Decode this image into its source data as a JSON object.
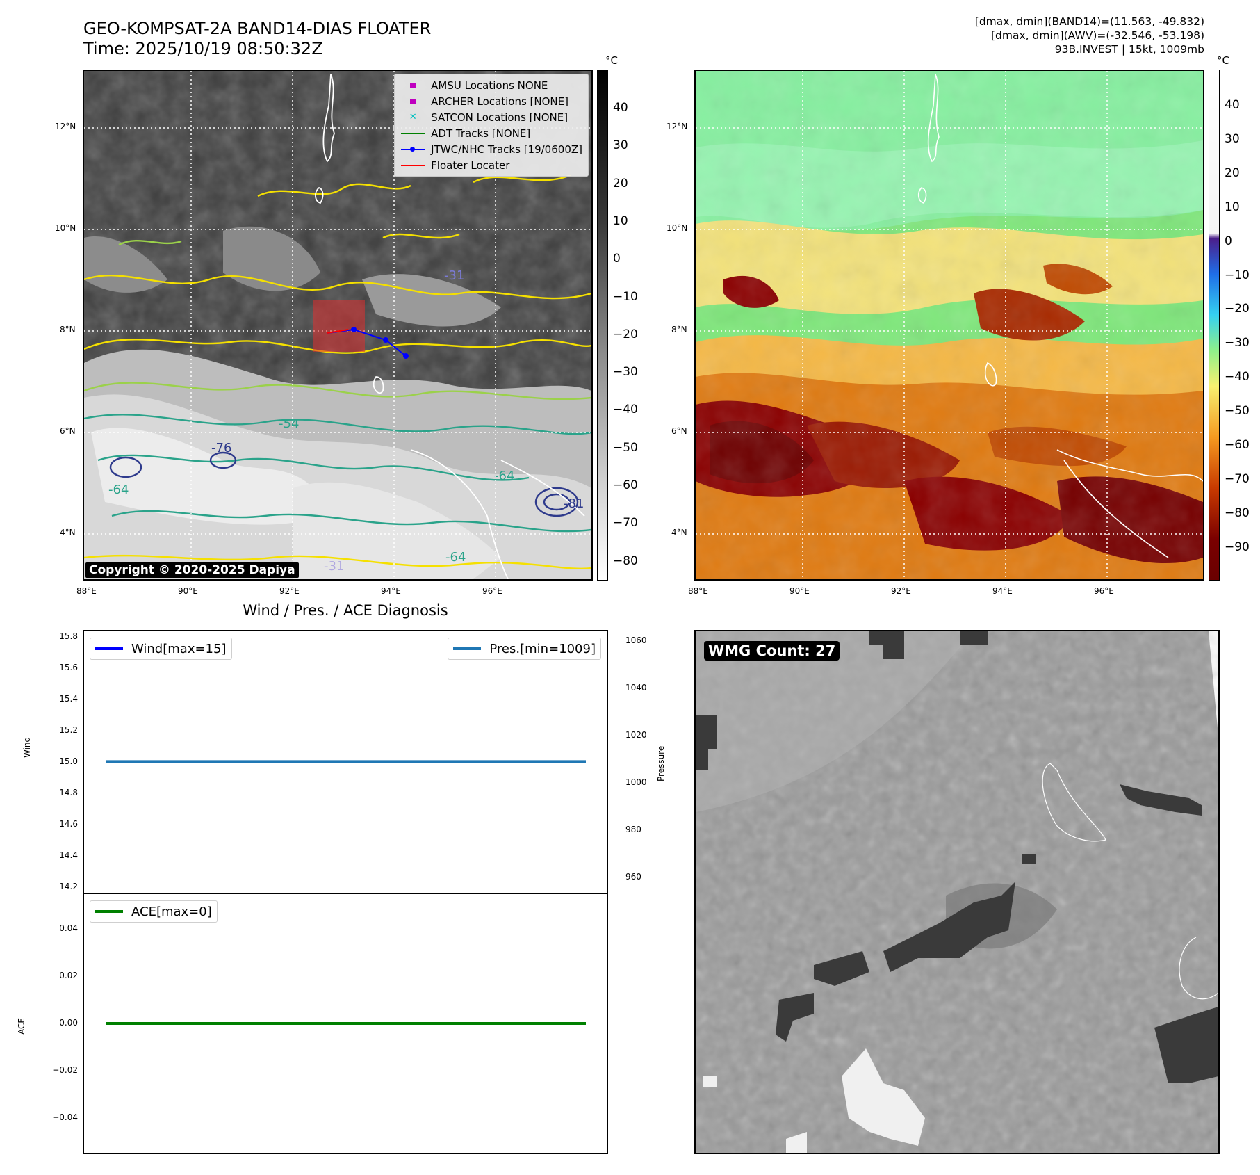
{
  "header": {
    "title_line1": "GEO-KOMPSAT-2A BAND14-DIAS FLOATER",
    "title_line2": "Time: 2025/10/19 08:50:32Z",
    "info_line1": "[dmax, dmin](BAND14)=(11.563, -49.832)",
    "info_line2": "[dmax, dmin](AWV)=(-32.546, -53.198)",
    "info_line3": "93B.INVEST | 15kt, 1009mb"
  },
  "map_left": {
    "lat_labels": [
      "12°N",
      "10°N",
      "8°N",
      "6°N",
      "4°N"
    ],
    "lon_labels": [
      "88°E",
      "90°E",
      "92°E",
      "94°E",
      "96°E"
    ],
    "colorbar_unit": "°C",
    "colorbar_ticks": [
      "40",
      "30",
      "20",
      "10",
      "0",
      "−10",
      "−20",
      "−30",
      "−40",
      "−50",
      "−60",
      "−70",
      "−80"
    ],
    "contour_labels": [
      "-31",
      "-54",
      "-76",
      "-64",
      "-64",
      "-81",
      "-64",
      "-31"
    ],
    "legend": [
      {
        "label": "AMSU Locations NONE",
        "symbol": "square",
        "color": "#bf00bf"
      },
      {
        "label": "ARCHER Locations [NONE]",
        "symbol": "square",
        "color": "#bf00bf"
      },
      {
        "label": "SATCON Locations [NONE]",
        "symbol": "x",
        "color": "#00bfbf"
      },
      {
        "label": "ADT Tracks [NONE]",
        "symbol": "line",
        "color": "#008000"
      },
      {
        "label": "JTWC/NHC Tracks [19/0600Z]",
        "symbol": "line-dot",
        "color": "#0000ff"
      },
      {
        "label": "Floater Locater",
        "symbol": "line",
        "color": "#ff0000"
      }
    ],
    "copyright": "Copyright © 2020-2025 Dapiya"
  },
  "map_right": {
    "lat_labels": [
      "12°N",
      "10°N",
      "8°N",
      "6°N",
      "4°N"
    ],
    "lon_labels": [
      "88°E",
      "90°E",
      "92°E",
      "94°E",
      "96°E"
    ],
    "colorbar_unit": "°C",
    "colorbar_ticks": [
      "40",
      "30",
      "20",
      "10",
      "0",
      "−10",
      "−20",
      "−30",
      "−40",
      "−50",
      "−60",
      "−70",
      "−80",
      "−90"
    ]
  },
  "diagnosis": {
    "title": "Wind / Pres. / ACE Diagnosis",
    "wind_ylabel": "Wind",
    "pressure_ylabel": "Pressure",
    "ace_ylabel": "ACE",
    "wind_ticks": [
      "15.8",
      "15.6",
      "15.4",
      "15.2",
      "15.0",
      "14.8",
      "14.6",
      "14.4",
      "14.2"
    ],
    "pressure_ticks": [
      "1060",
      "1040",
      "1020",
      "1000",
      "980",
      "960"
    ],
    "ace_ticks": [
      "0.04",
      "0.02",
      "0.00",
      "−0.02",
      "−0.04"
    ],
    "wind_legend": "Wind[max=15]",
    "pressure_legend": "Pres.[min=1009]",
    "ace_legend": "ACE[max=0]",
    "wind_color": "#0000ff",
    "pressure_color": "#1f77b4",
    "ace_color": "#008000"
  },
  "wmg": {
    "label": "WMG Count: 27"
  },
  "chart_data": [
    {
      "type": "line",
      "title": "Wind / Pres. / ACE Diagnosis",
      "ylabel": "Wind",
      "ylim": [
        14.2,
        15.8
      ],
      "series": [
        {
          "name": "Wind[max=15]",
          "x": [
            0,
            1
          ],
          "values": [
            15,
            15
          ]
        }
      ]
    },
    {
      "type": "line",
      "ylabel": "Pressure",
      "ylim": [
        950,
        1065
      ],
      "series": [
        {
          "name": "Pres.[min=1009]",
          "x": [
            0,
            1
          ],
          "values": [
            1009,
            1009
          ]
        }
      ]
    },
    {
      "type": "line",
      "ylabel": "ACE",
      "ylim": [
        -0.055,
        0.055
      ],
      "series": [
        {
          "name": "ACE[max=0]",
          "x": [
            0,
            1
          ],
          "values": [
            0,
            0
          ]
        }
      ]
    }
  ]
}
